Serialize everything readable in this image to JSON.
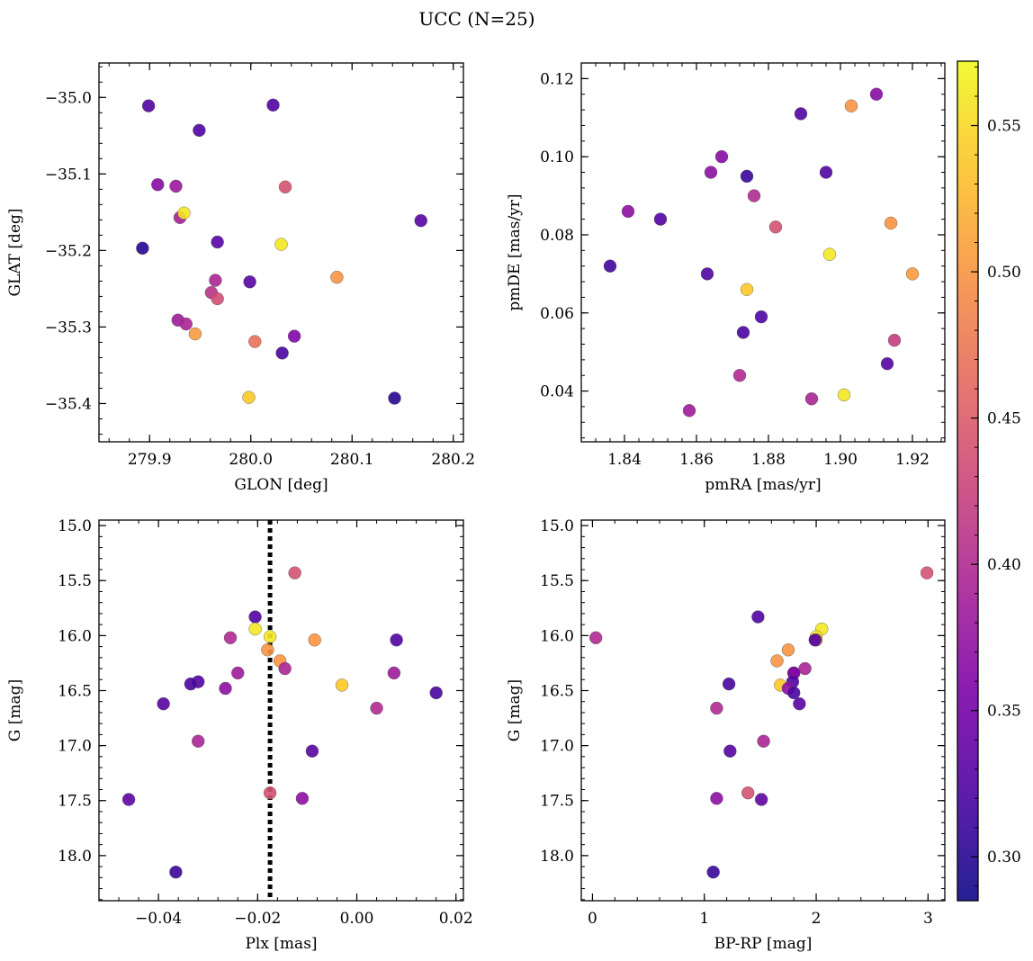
{
  "title": "UCC (N=25)",
  "colorbar": {
    "min": 0.285,
    "max": 0.572,
    "ticks": [
      0.3,
      0.35,
      0.4,
      0.45,
      0.5,
      0.55
    ],
    "tick_labels": [
      "0.30",
      "0.35",
      "0.40",
      "0.45",
      "0.50",
      "0.55"
    ],
    "colormap": "plasma"
  },
  "chart_data": [
    {
      "id": "glon-glat",
      "type": "scatter",
      "xlabel": "GLON [deg]",
      "ylabel": "GLAT [deg]",
      "xlim": [
        279.85,
        280.21
      ],
      "ylim": [
        -35.45,
        -34.955
      ],
      "xticks": [
        279.9,
        280.0,
        280.1,
        280.2
      ],
      "xtick_labels": [
        "279.9",
        "280.0",
        "280.1",
        "280.2"
      ],
      "yticks": [
        -35.4,
        -35.3,
        -35.2,
        -35.1,
        -35.0
      ],
      "ytick_labels": [
        "−35.4",
        "−35.3",
        "−35.2",
        "−35.1",
        "−35.0"
      ],
      "points": [
        {
          "x": 279.899,
          "y": -35.011,
          "c": 0.325
        },
        {
          "x": 280.022,
          "y": -35.01,
          "c": 0.325
        },
        {
          "x": 279.949,
          "y": -35.043,
          "c": 0.325
        },
        {
          "x": 279.908,
          "y": -35.114,
          "c": 0.365
        },
        {
          "x": 279.926,
          "y": -35.116,
          "c": 0.38
        },
        {
          "x": 280.034,
          "y": -35.117,
          "c": 0.44
        },
        {
          "x": 279.93,
          "y": -35.157,
          "c": 0.39
        },
        {
          "x": 279.934,
          "y": -35.151,
          "c": 0.56
        },
        {
          "x": 280.168,
          "y": -35.161,
          "c": 0.33
        },
        {
          "x": 279.893,
          "y": -35.197,
          "c": 0.3
        },
        {
          "x": 279.967,
          "y": -35.189,
          "c": 0.33
        },
        {
          "x": 280.03,
          "y": -35.192,
          "c": 0.56
        },
        {
          "x": 280.085,
          "y": -35.235,
          "c": 0.5
        },
        {
          "x": 279.965,
          "y": -35.239,
          "c": 0.395
        },
        {
          "x": 279.999,
          "y": -35.241,
          "c": 0.33
        },
        {
          "x": 279.961,
          "y": -35.255,
          "c": 0.41
        },
        {
          "x": 279.967,
          "y": -35.263,
          "c": 0.435
        },
        {
          "x": 279.928,
          "y": -35.291,
          "c": 0.385
        },
        {
          "x": 279.936,
          "y": -35.296,
          "c": 0.395
        },
        {
          "x": 279.945,
          "y": -35.309,
          "c": 0.505
        },
        {
          "x": 280.043,
          "y": -35.312,
          "c": 0.36
        },
        {
          "x": 280.004,
          "y": -35.319,
          "c": 0.47
        },
        {
          "x": 280.031,
          "y": -35.334,
          "c": 0.32
        },
        {
          "x": 279.998,
          "y": -35.392,
          "c": 0.54
        },
        {
          "x": 280.142,
          "y": -35.393,
          "c": 0.3
        }
      ]
    },
    {
      "id": "pmra-pmde",
      "type": "scatter",
      "xlabel": "pmRA [mas/yr]",
      "ylabel": "pmDE [mas/yr]",
      "xlim": [
        1.828,
        1.929
      ],
      "ylim": [
        0.027,
        0.124
      ],
      "xticks": [
        1.84,
        1.86,
        1.88,
        1.9,
        1.92
      ],
      "xtick_labels": [
        "1.84",
        "1.86",
        "1.88",
        "1.90",
        "1.92"
      ],
      "yticks": [
        0.04,
        0.06,
        0.08,
        0.1,
        0.12
      ],
      "ytick_labels": [
        "0.04",
        "0.06",
        "0.08",
        "0.10",
        "0.12"
      ],
      "points": [
        {
          "x": 1.91,
          "y": 0.116,
          "c": 0.365
        },
        {
          "x": 1.903,
          "y": 0.113,
          "c": 0.5
        },
        {
          "x": 1.889,
          "y": 0.111,
          "c": 0.325
        },
        {
          "x": 1.867,
          "y": 0.1,
          "c": 0.365
        },
        {
          "x": 1.864,
          "y": 0.096,
          "c": 0.37
        },
        {
          "x": 1.896,
          "y": 0.096,
          "c": 0.325
        },
        {
          "x": 1.874,
          "y": 0.095,
          "c": 0.31
        },
        {
          "x": 1.876,
          "y": 0.09,
          "c": 0.4
        },
        {
          "x": 1.841,
          "y": 0.086,
          "c": 0.37
        },
        {
          "x": 1.85,
          "y": 0.084,
          "c": 0.325
        },
        {
          "x": 1.914,
          "y": 0.083,
          "c": 0.5
        },
        {
          "x": 1.882,
          "y": 0.082,
          "c": 0.44
        },
        {
          "x": 1.897,
          "y": 0.075,
          "c": 0.56
        },
        {
          "x": 1.836,
          "y": 0.072,
          "c": 0.315
        },
        {
          "x": 1.92,
          "y": 0.07,
          "c": 0.505
        },
        {
          "x": 1.863,
          "y": 0.07,
          "c": 0.325
        },
        {
          "x": 1.874,
          "y": 0.066,
          "c": 0.54
        },
        {
          "x": 1.878,
          "y": 0.059,
          "c": 0.325
        },
        {
          "x": 1.873,
          "y": 0.055,
          "c": 0.32
        },
        {
          "x": 1.915,
          "y": 0.053,
          "c": 0.42
        },
        {
          "x": 1.913,
          "y": 0.047,
          "c": 0.33
        },
        {
          "x": 1.872,
          "y": 0.044,
          "c": 0.4
        },
        {
          "x": 1.892,
          "y": 0.038,
          "c": 0.395
        },
        {
          "x": 1.901,
          "y": 0.039,
          "c": 0.56
        },
        {
          "x": 1.858,
          "y": 0.035,
          "c": 0.385
        }
      ]
    },
    {
      "id": "plx-g",
      "type": "scatter",
      "xlabel": "Plx [mas]",
      "ylabel": "G [mag]",
      "xlim": [
        -0.052,
        0.0215
      ],
      "ylim": [
        18.41,
        14.95
      ],
      "xticks": [
        -0.04,
        -0.02,
        0.0,
        0.02
      ],
      "xtick_labels": [
        "−0.04",
        "−0.02",
        "0.00",
        "0.02"
      ],
      "yticks": [
        15.0,
        15.5,
        16.0,
        16.5,
        17.0,
        17.5,
        18.0
      ],
      "ytick_labels": [
        "15.0",
        "15.5",
        "16.0",
        "16.5",
        "17.0",
        "17.5",
        "18.0"
      ],
      "vline": {
        "x": -0.0175,
        "style": "dotted"
      },
      "points": [
        {
          "x": -0.0125,
          "y": 15.43,
          "c": 0.44
        },
        {
          "x": -0.0205,
          "y": 15.83,
          "c": 0.325
        },
        {
          "x": -0.0205,
          "y": 15.94,
          "c": 0.56
        },
        {
          "x": -0.0175,
          "y": 16.01,
          "c": 0.56
        },
        {
          "x": -0.0255,
          "y": 16.02,
          "c": 0.4
        },
        {
          "x": -0.0085,
          "y": 16.04,
          "c": 0.5
        },
        {
          "x": 0.008,
          "y": 16.04,
          "c": 0.325
        },
        {
          "x": -0.018,
          "y": 16.13,
          "c": 0.5
        },
        {
          "x": -0.0155,
          "y": 16.23,
          "c": 0.5
        },
        {
          "x": -0.0145,
          "y": 16.3,
          "c": 0.395
        },
        {
          "x": -0.024,
          "y": 16.34,
          "c": 0.385
        },
        {
          "x": 0.0075,
          "y": 16.34,
          "c": 0.385
        },
        {
          "x": -0.032,
          "y": 16.42,
          "c": 0.325
        },
        {
          "x": -0.0335,
          "y": 16.44,
          "c": 0.32
        },
        {
          "x": -0.003,
          "y": 16.45,
          "c": 0.54
        },
        {
          "x": -0.0265,
          "y": 16.48,
          "c": 0.37
        },
        {
          "x": 0.016,
          "y": 16.52,
          "c": 0.32
        },
        {
          "x": -0.039,
          "y": 16.62,
          "c": 0.33
        },
        {
          "x": 0.004,
          "y": 16.66,
          "c": 0.4
        },
        {
          "x": -0.032,
          "y": 16.96,
          "c": 0.395
        },
        {
          "x": -0.009,
          "y": 17.05,
          "c": 0.33
        },
        {
          "x": -0.0175,
          "y": 17.43,
          "c": 0.44
        },
        {
          "x": -0.011,
          "y": 17.48,
          "c": 0.37
        },
        {
          "x": -0.046,
          "y": 17.49,
          "c": 0.335
        },
        {
          "x": -0.0365,
          "y": 18.15,
          "c": 0.31
        }
      ]
    },
    {
      "id": "bprp-g",
      "type": "scatter",
      "xlabel": "BP-RP [mag]",
      "ylabel": "G [mag]",
      "xlim": [
        -0.1,
        3.15
      ],
      "ylim": [
        18.41,
        14.95
      ],
      "xticks": [
        0,
        1,
        2,
        3
      ],
      "xtick_labels": [
        "0",
        "1",
        "2",
        "3"
      ],
      "yticks": [
        15.0,
        15.5,
        16.0,
        16.5,
        17.0,
        17.5,
        18.0
      ],
      "ytick_labels": [
        "15.0",
        "15.5",
        "16.0",
        "16.5",
        "17.0",
        "17.5",
        "18.0"
      ],
      "points": [
        {
          "x": 2.99,
          "y": 15.43,
          "c": 0.44
        },
        {
          "x": 1.48,
          "y": 15.83,
          "c": 0.325
        },
        {
          "x": 2.05,
          "y": 15.94,
          "c": 0.56
        },
        {
          "x": 2.0,
          "y": 16.01,
          "c": 0.56
        },
        {
          "x": 0.03,
          "y": 16.02,
          "c": 0.4
        },
        {
          "x": 2.0,
          "y": 16.04,
          "c": 0.5
        },
        {
          "x": 1.99,
          "y": 16.04,
          "c": 0.325
        },
        {
          "x": 1.75,
          "y": 16.13,
          "c": 0.5
        },
        {
          "x": 1.65,
          "y": 16.23,
          "c": 0.5
        },
        {
          "x": 1.9,
          "y": 16.3,
          "c": 0.395
        },
        {
          "x": 1.8,
          "y": 16.34,
          "c": 0.385
        },
        {
          "x": 1.8,
          "y": 16.34,
          "c": 0.36
        },
        {
          "x": 1.79,
          "y": 16.42,
          "c": 0.325
        },
        {
          "x": 1.22,
          "y": 16.44,
          "c": 0.32
        },
        {
          "x": 1.68,
          "y": 16.45,
          "c": 0.54
        },
        {
          "x": 1.75,
          "y": 16.48,
          "c": 0.37
        },
        {
          "x": 1.8,
          "y": 16.52,
          "c": 0.32
        },
        {
          "x": 1.85,
          "y": 16.62,
          "c": 0.33
        },
        {
          "x": 1.11,
          "y": 16.66,
          "c": 0.4
        },
        {
          "x": 1.53,
          "y": 16.96,
          "c": 0.395
        },
        {
          "x": 1.23,
          "y": 17.05,
          "c": 0.33
        },
        {
          "x": 1.39,
          "y": 17.43,
          "c": 0.44
        },
        {
          "x": 1.11,
          "y": 17.48,
          "c": 0.37
        },
        {
          "x": 1.51,
          "y": 17.49,
          "c": 0.335
        },
        {
          "x": 1.08,
          "y": 18.15,
          "c": 0.31
        }
      ]
    }
  ]
}
